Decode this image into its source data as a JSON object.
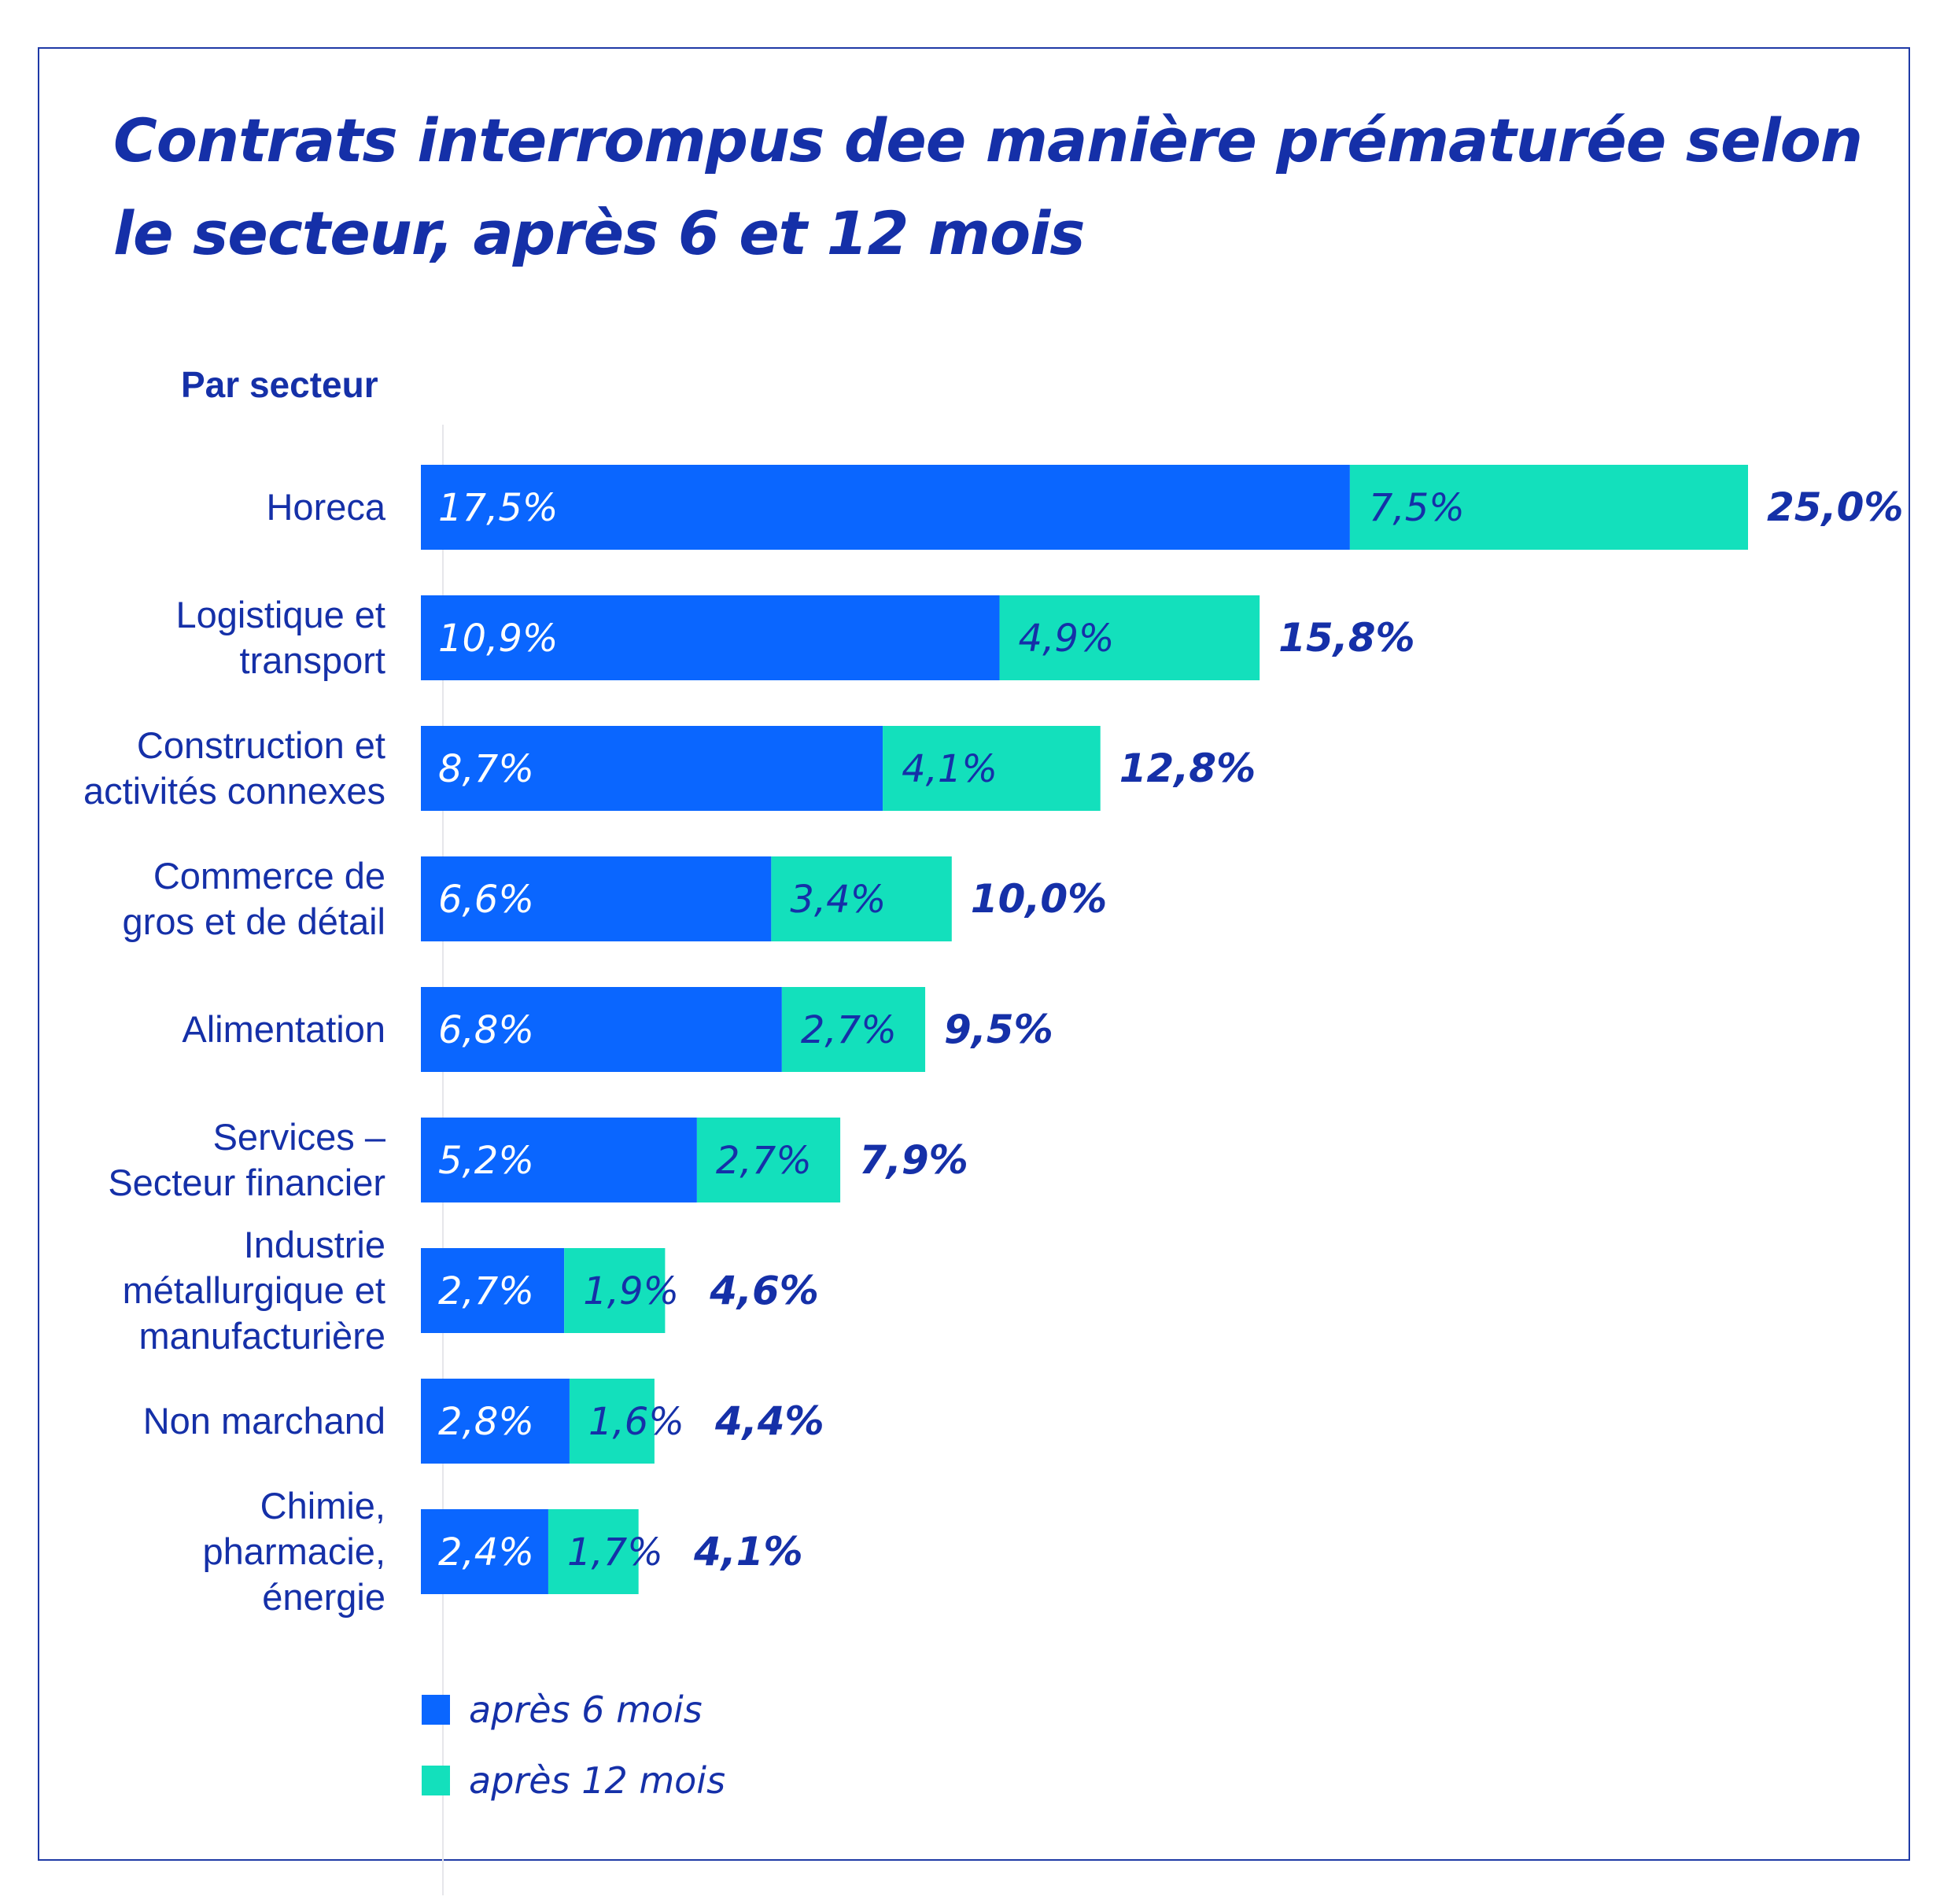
{
  "colors": {
    "series_6": "#0a66ff",
    "series_12": "#13e0bc",
    "text": "#1530a8"
  },
  "chart_data": {
    "type": "bar",
    "orientation": "horizontal",
    "stacked": true,
    "title": "Contrats interrompus dee manière prématurée selon le secteur, après 6 et 12 mois",
    "subtitle": "Par secteur",
    "categories": [
      [
        "Horeca"
      ],
      [
        "Logistique et",
        "transport"
      ],
      [
        "Construction et",
        "activités connexes"
      ],
      [
        "Commerce de",
        "gros et de détail"
      ],
      [
        "Alimentation"
      ],
      [
        "Services –",
        "Secteur financier"
      ],
      [
        "Industrie",
        "métallurgique et",
        "manufacturière"
      ],
      [
        "Non marchand"
      ],
      [
        "Chimie,",
        "pharmacie,",
        "énergie"
      ]
    ],
    "series": [
      {
        "name": "après 6 mois",
        "values": [
          17.5,
          10.9,
          8.7,
          6.6,
          6.8,
          5.2,
          2.7,
          2.8,
          2.4
        ],
        "labels": [
          "17,5%",
          "10,9%",
          "8,7%",
          "6,6%",
          "6,8%",
          "5,2%",
          "2,7%",
          "2,8%",
          "2,4%"
        ]
      },
      {
        "name": "après 12 mois",
        "values": [
          7.5,
          4.9,
          4.1,
          3.4,
          2.7,
          2.7,
          1.9,
          1.6,
          1.7
        ],
        "labels": [
          "7,5%",
          "4,9%",
          "4,1%",
          "3,4%",
          "2,7%",
          "2,7%",
          "1,9%",
          "1,6%",
          "1,7%"
        ]
      }
    ],
    "totals": [
      25.0,
      15.8,
      12.8,
      10.0,
      9.5,
      7.9,
      4.6,
      4.4,
      4.1
    ],
    "total_labels": [
      "25,0%",
      "15,8%",
      "12,8%",
      "10,0%",
      "9,5%",
      "7,9%",
      "4,6%",
      "4,4%",
      "4,1%"
    ],
    "xlim": [
      0,
      25
    ],
    "grid": false,
    "legend_position": "bottom-left"
  }
}
